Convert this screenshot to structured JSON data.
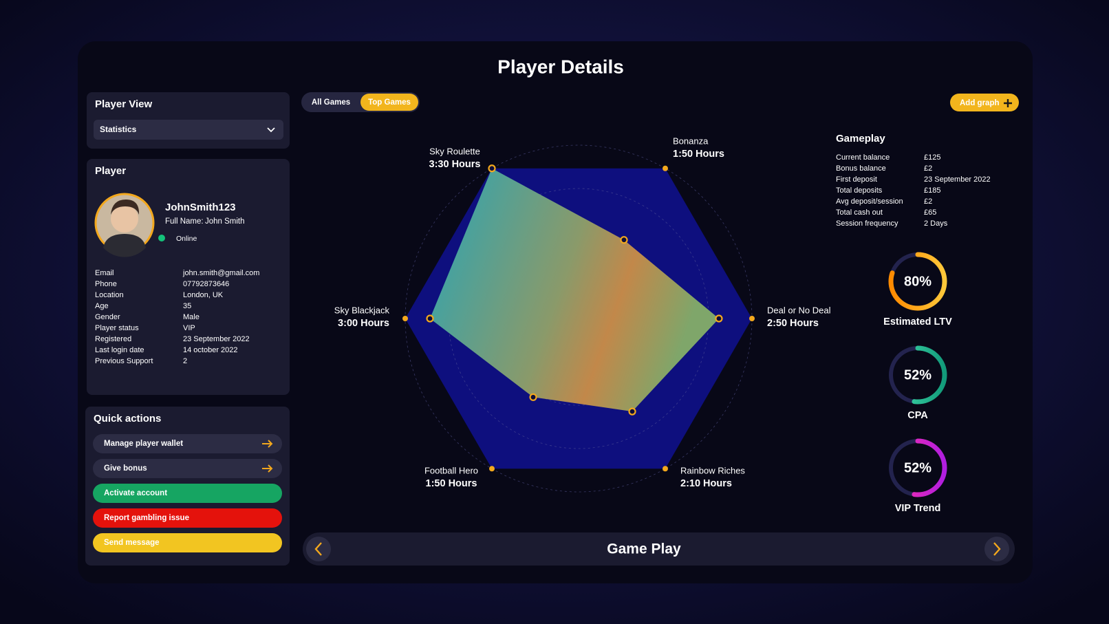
{
  "title": "Player Details",
  "player_view": {
    "heading": "Player View",
    "dropdown": "Statistics"
  },
  "player": {
    "heading": "Player",
    "username": "JohnSmith123",
    "full_name_label": "Full Name:",
    "full_name": "John Smith",
    "status": "Online",
    "details": [
      [
        "Email",
        "john.smith@gmail.com"
      ],
      [
        "Phone",
        "07792873646"
      ],
      [
        "Location",
        "London, UK"
      ],
      [
        "Age",
        "35"
      ],
      [
        "Gender",
        "Male"
      ],
      [
        "Player status",
        "VIP"
      ],
      [
        "Registered",
        "23 September 2022"
      ],
      [
        "Last login date",
        "14 october 2022"
      ],
      [
        "Previous Support",
        "2"
      ]
    ]
  },
  "quick_actions": {
    "heading": "Quick actions",
    "buttons": [
      "Manage player wallet",
      "Give bonus",
      "Activate account",
      "Report gambling issue",
      "Send message"
    ]
  },
  "tabs": [
    "All Games",
    "Top Games"
  ],
  "add_graph": "Add graph",
  "chart_data": {
    "type": "radar",
    "categories": [
      "Sky Roulette",
      "Bonanza",
      "Deal or No Deal",
      "Rainbow Riches",
      "Football Hero",
      "Sky Blackjack"
    ],
    "values": [
      3.5,
      1.833,
      2.833,
      2.167,
      1.833,
      3.0
    ],
    "value_labels": [
      "3:30 Hours",
      "1:50 Hours",
      "2:50 Hours",
      "2:10 Hours",
      "1:50 Hours",
      "3:00 Hours"
    ],
    "rlim": [
      0,
      3.5
    ]
  },
  "gameplay": {
    "heading": "Gameplay",
    "rows": [
      [
        "Current balance",
        "£125"
      ],
      [
        "Bonus balance",
        "£2"
      ],
      [
        "First deposit",
        "23 September 2022"
      ],
      [
        "Total deposits",
        "£185"
      ],
      [
        "Avg deposit/session",
        "£2"
      ],
      [
        "Total cash out",
        "£65"
      ],
      [
        "Session frequency",
        "2 Days"
      ]
    ]
  },
  "kpis": {
    "names": [
      "Estimated LTV",
      "CPA",
      "VIP Trend"
    ],
    "values": [
      80,
      52,
      52
    ],
    "value_labels": [
      "80%",
      "52%",
      "52%"
    ],
    "lim": [
      0,
      100
    ]
  },
  "bottom_bar": {
    "title": "Game Play"
  }
}
